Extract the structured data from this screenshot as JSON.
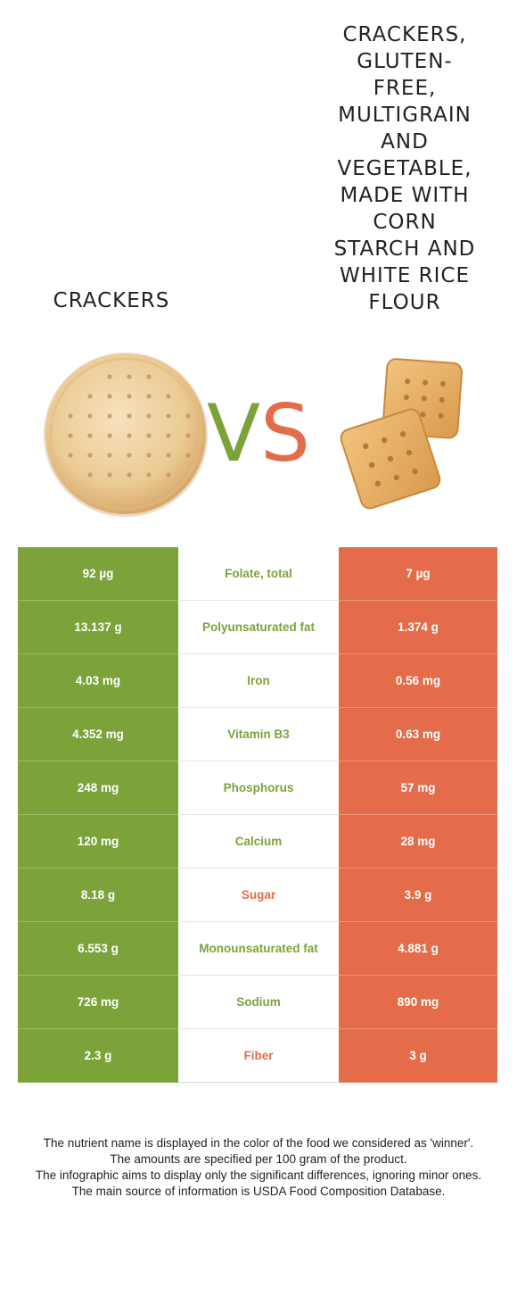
{
  "food_left": {
    "name": "Crackers",
    "color": "#7ba33a"
  },
  "food_right": {
    "name": "Crackers, gluten-free, multigrain and vegetable, made with corn starch and white rice flour",
    "color": "#e46c4a"
  },
  "vs": {
    "v": "V",
    "s": "S"
  },
  "rows": [
    {
      "left": "92 µg",
      "nutrient": "Folate, total",
      "right": "7 µg",
      "winner": "left"
    },
    {
      "left": "13.137 g",
      "nutrient": "Polyunsaturated fat",
      "right": "1.374 g",
      "winner": "left"
    },
    {
      "left": "4.03 mg",
      "nutrient": "Iron",
      "right": "0.56 mg",
      "winner": "left"
    },
    {
      "left": "4.352 mg",
      "nutrient": "Vitamin B3",
      "right": "0.63 mg",
      "winner": "left"
    },
    {
      "left": "248 mg",
      "nutrient": "Phosphorus",
      "right": "57 mg",
      "winner": "left"
    },
    {
      "left": "120 mg",
      "nutrient": "Calcium",
      "right": "28 mg",
      "winner": "left"
    },
    {
      "left": "8.18 g",
      "nutrient": "Sugar",
      "right": "3.9 g",
      "winner": "right"
    },
    {
      "left": "6.553 g",
      "nutrient": "Monounsaturated fat",
      "right": "4.881 g",
      "winner": "left"
    },
    {
      "left": "726 mg",
      "nutrient": "Sodium",
      "right": "890 mg",
      "winner": "left"
    },
    {
      "left": "2.3 g",
      "nutrient": "Fiber",
      "right": "3 g",
      "winner": "right"
    }
  ],
  "notes": [
    "The nutrient name is displayed in the color of the food we considered as 'winner'.",
    "The amounts are specified per 100 gram of the product.",
    "The infographic aims to display only the significant differences, ignoring minor ones.",
    "The main source of information is USDA Food Composition Database."
  ],
  "icons": {
    "left_image": "round-cracker-icon",
    "right_image": "square-crackers-icon"
  }
}
